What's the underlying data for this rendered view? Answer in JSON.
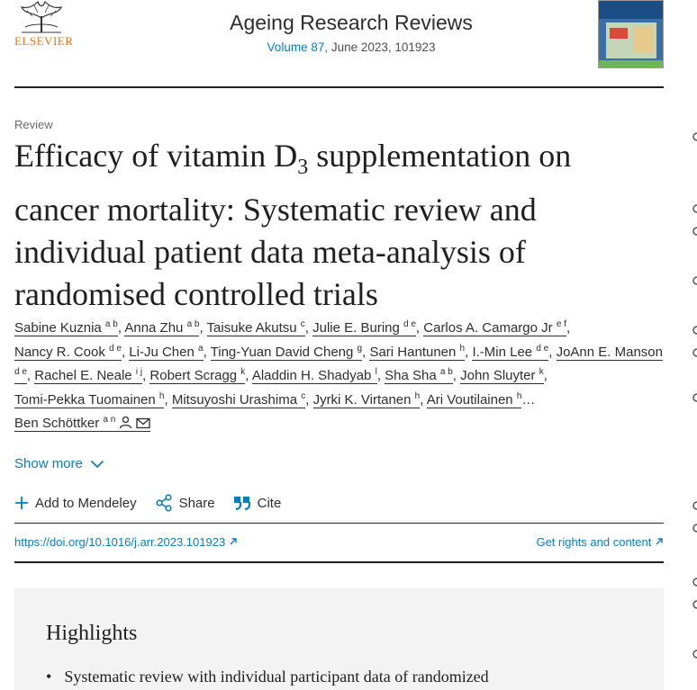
{
  "publisher": {
    "name": "ELSEVIER"
  },
  "journal": {
    "title": "Ageing Research Reviews",
    "volume_link": "Volume 87",
    "issue_info": ", June 2023, 101923"
  },
  "article": {
    "type": "Review",
    "title_line1_before_sub": "Efficacy of vitamin D",
    "title_subscript": "3",
    "title_line1_after_sub": " supplementation on",
    "title_line2": "cancer mortality: Systematic review and",
    "title_line3": "individual patient data meta-analysis of",
    "title_line4": "randomised controlled trials"
  },
  "authors": [
    {
      "name": "Sabine Kuznia",
      "aff": "a b"
    },
    {
      "name": "Anna Zhu",
      "aff": "a b"
    },
    {
      "name": "Taisuke Akutsu",
      "aff": "c"
    },
    {
      "name": "Julie E. Buring",
      "aff": "d e"
    },
    {
      "name": "Carlos A. Camargo Jr",
      "aff": "e f"
    },
    {
      "name": "Nancy R. Cook",
      "aff": "d e"
    },
    {
      "name": "Li-Ju Chen",
      "aff": "a"
    },
    {
      "name": "Ting-Yuan David Cheng",
      "aff": "g"
    },
    {
      "name": "Sari Hantunen",
      "aff": "h"
    },
    {
      "name": "I.-Min Lee",
      "aff": "d e"
    },
    {
      "name": "JoAnn E. Manson",
      "aff": "d e"
    },
    {
      "name": "Rachel E. Neale",
      "aff": "i j"
    },
    {
      "name": "Robert Scragg",
      "aff": "k"
    },
    {
      "name": "Aladdin H. Shadyab",
      "aff": "l"
    },
    {
      "name": "Sha Sha",
      "aff": "a b"
    },
    {
      "name": "John Sluyter",
      "aff": "k"
    },
    {
      "name": "Tomi-Pekka Tuomainen",
      "aff": "h"
    },
    {
      "name": "Mitsuyoshi Urashima",
      "aff": "c"
    },
    {
      "name": "Jyrki K. Virtanen",
      "aff": "h"
    },
    {
      "name": "Ari Voutilainen",
      "aff": "h"
    },
    {
      "name": "Ben Schöttker",
      "aff": "a n"
    }
  ],
  "ellipsis": "…",
  "show_more": "Show more",
  "actions": {
    "mendeley": "Add to Mendeley",
    "share": "Share",
    "cite": "Cite"
  },
  "links": {
    "doi": "https://doi.org/10.1016/j.arr.2023.101923",
    "rights": "Get rights and content"
  },
  "highlights": {
    "title": "Highlights",
    "item1": "Systematic review with individual participant data of randomized"
  },
  "colors": {
    "link_blue": "#0c7dbb",
    "elsevier_orange": "#e9711c",
    "highlight_bg": "#f3f3f3"
  },
  "icons": [
    "elsevier-tree-icon",
    "person-icon",
    "envelope-icon",
    "chevron-down-icon",
    "plus-icon",
    "share-icon",
    "quote-icon",
    "arrow-up-right-icon"
  ]
}
